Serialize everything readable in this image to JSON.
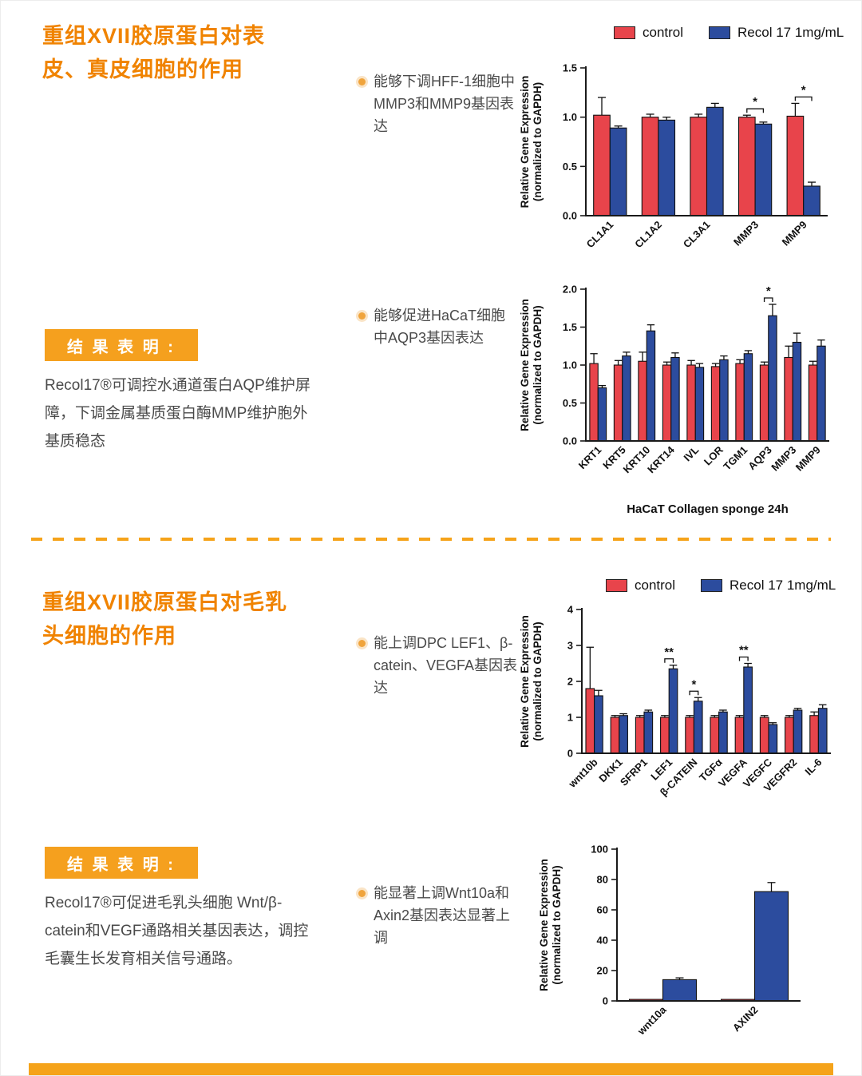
{
  "colors": {
    "heading_orange": "#F08300",
    "accent_orange": "#F5A31A",
    "control_red": "#E8444B",
    "treatment_blue": "#2C4C9E",
    "text_dark": "#4A4A4A"
  },
  "legend": {
    "control_label": "control",
    "treatment_label": "Recol 17 1mg/mL"
  },
  "section1": {
    "title": "重组XVII胶原蛋白对表皮、真皮细胞的作用",
    "bullet1": "能够下调HFF-1细胞中MMP3和MMP9基因表达",
    "bullet2": "能够促进HaCaT细胞中AQP3基因表达",
    "result_label": "结 果 表 明 :",
    "result_text": "Recol17®可调控水通道蛋白AQP维护屏障，下调金属基质蛋白酶MMP维护胞外基质稳态"
  },
  "section2": {
    "title": "重组XVII胶原蛋白对毛乳头细胞的作用",
    "bullet1": "能上调DPC LEF1、β-catein、VEGFA基因表达",
    "bullet2": "能显著上调Wnt10a和Axin2基因表达显著上调",
    "result_label": "结 果 表 明 :",
    "result_text": "Recol17®可促进毛乳头细胞 Wnt/β-catein和VEGF通路相关基因表达，调控毛囊生长发育相关信号通路。"
  },
  "chart_data": [
    {
      "type": "bar",
      "categories": [
        "CL1A1",
        "CL1A2",
        "CL3A1",
        "MMP3",
        "MMP9"
      ],
      "series": [
        {
          "name": "control",
          "values": [
            1.02,
            1.0,
            1.0,
            1.0,
            1.01
          ],
          "errors": [
            0.18,
            0.03,
            0.03,
            0.02,
            0.13
          ]
        },
        {
          "name": "Recol 17 1mg/mL",
          "values": [
            0.89,
            0.97,
            1.1,
            0.93,
            0.3
          ],
          "errors": [
            0.02,
            0.03,
            0.04,
            0.02,
            0.04
          ]
        }
      ],
      "ylabel": "Relative Gene Expression\n(normalized to GAPDH)",
      "xlabel": "",
      "ylim": [
        0,
        1.5
      ],
      "yticks": [
        0,
        0.5,
        1,
        1.5
      ],
      "ytick_labels": [
        "0.0",
        "0.5",
        "1.0",
        "1.5"
      ],
      "significance": [
        {
          "category": "MMP3",
          "label": "*"
        },
        {
          "category": "MMP9",
          "label": "*"
        }
      ],
      "legend_position": "top-right",
      "grid": false
    },
    {
      "type": "bar",
      "categories": [
        "KRT1",
        "KRT5",
        "KRT10",
        "KRT14",
        "IVL",
        "LOR",
        "TGM1",
        "AQP3",
        "MMP3",
        "MMP9"
      ],
      "series": [
        {
          "name": "control",
          "values": [
            1.02,
            1.0,
            1.05,
            1.0,
            1.0,
            0.98,
            1.02,
            1.0,
            1.1,
            1.0
          ],
          "errors": [
            0.13,
            0.06,
            0.12,
            0.04,
            0.06,
            0.04,
            0.05,
            0.04,
            0.15,
            0.05
          ]
        },
        {
          "name": "Recol 17 1mg/mL",
          "values": [
            0.7,
            1.12,
            1.45,
            1.1,
            0.97,
            1.07,
            1.15,
            1.65,
            1.3,
            1.25
          ],
          "errors": [
            0.03,
            0.05,
            0.08,
            0.06,
            0.05,
            0.05,
            0.04,
            0.15,
            0.12,
            0.08
          ]
        }
      ],
      "ylabel": "Relative Gene Expression\n(normalized to GAPDH)",
      "xlabel": "HaCaT  Collagen sponge 24h",
      "ylim": [
        0,
        2
      ],
      "yticks": [
        0,
        0.5,
        1,
        1.5,
        2
      ],
      "ytick_labels": [
        "0.0",
        "0.5",
        "1.0",
        "1.5",
        "2.0"
      ],
      "significance": [
        {
          "category": "AQP3",
          "label": "*"
        }
      ],
      "grid": false
    },
    {
      "type": "bar",
      "categories": [
        "wnt10b",
        "DKK1",
        "SFRP1",
        "LEF1",
        "β-CATEIN",
        "TGFα",
        "VEGFA",
        "VEGFC",
        "VEGFR2",
        "IL-6"
      ],
      "series": [
        {
          "name": "control",
          "values": [
            1.8,
            1.0,
            1.0,
            1.0,
            1.0,
            1.0,
            1.0,
            1.0,
            1.0,
            1.05
          ],
          "errors": [
            1.15,
            0.05,
            0.05,
            0.05,
            0.05,
            0.05,
            0.05,
            0.05,
            0.05,
            0.1
          ]
        },
        {
          "name": "Recol 17 1mg/mL",
          "values": [
            1.6,
            1.05,
            1.15,
            2.35,
            1.45,
            1.15,
            2.4,
            0.8,
            1.2,
            1.25
          ],
          "errors": [
            0.15,
            0.05,
            0.05,
            0.1,
            0.1,
            0.05,
            0.1,
            0.05,
            0.05,
            0.1
          ]
        }
      ],
      "ylabel": "Relative Gene Expression\n(normalized to GAPDH)",
      "xlabel": "",
      "ylim": [
        0,
        4
      ],
      "yticks": [
        0,
        1,
        2,
        3,
        4
      ],
      "ytick_labels": [
        "0",
        "1",
        "2",
        "3",
        "4"
      ],
      "significance": [
        {
          "category": "LEF1",
          "label": "**"
        },
        {
          "category": "β-CATEIN",
          "label": "*"
        },
        {
          "category": "VEGFA",
          "label": "**"
        }
      ],
      "grid": false
    },
    {
      "type": "bar",
      "categories": [
        "wnt10a",
        "AXIN2"
      ],
      "series": [
        {
          "name": "control",
          "values": [
            1,
            1
          ],
          "errors": [
            0,
            0
          ]
        },
        {
          "name": "Recol 17 1mg/mL",
          "values": [
            14,
            72
          ],
          "errors": [
            1.2,
            6
          ]
        }
      ],
      "ylabel": "Relative Gene Expression\n(normalized to GAPDH)",
      "xlabel": "",
      "ylim": [
        0,
        100
      ],
      "yticks": [
        0,
        20,
        40,
        60,
        80,
        100
      ],
      "ytick_labels": [
        "0",
        "20",
        "40",
        "60",
        "80",
        "100"
      ],
      "significance": [],
      "grid": false
    }
  ]
}
